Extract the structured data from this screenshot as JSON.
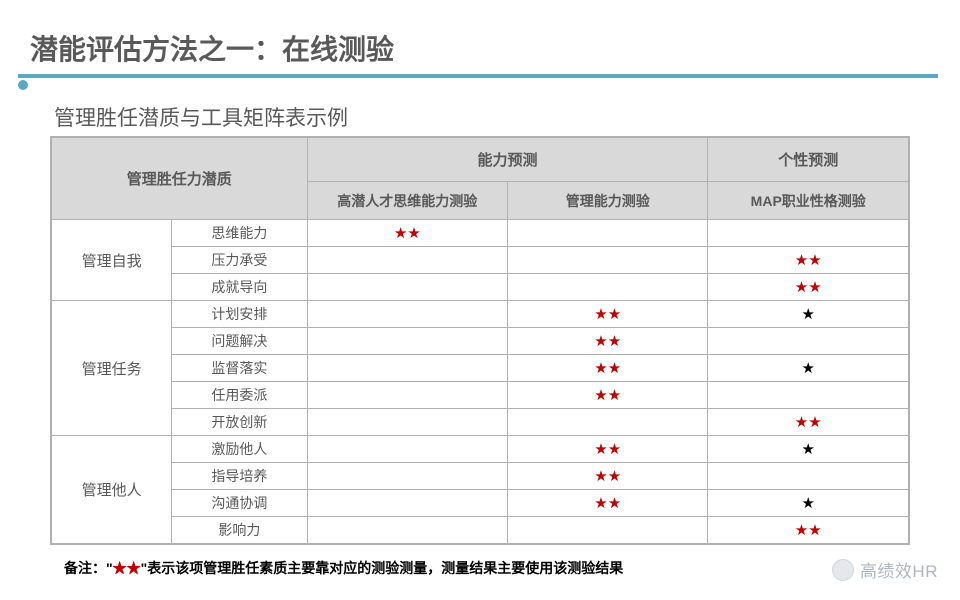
{
  "title": "潜能评估方法之一：在线测验",
  "subtitle": "管理胜任潜质与工具矩阵表示例",
  "colors": {
    "accent": "#5aa8c8",
    "header_bg": "#d9d9d9",
    "border": "#b0b0b0",
    "text": "#595959",
    "star_primary": "#c00000",
    "star_secondary": "#000000",
    "brand": "#aeb6bd"
  },
  "table": {
    "header_row1": {
      "col1": "管理胜任力潜质",
      "col2": "能力预测",
      "col3": "个性预测"
    },
    "header_row2": {
      "c1": "高潜人才思维能力测验",
      "c2": "管理能力测验",
      "c3": "MAP职业性格测验"
    },
    "groups": [
      {
        "category": "管理自我",
        "items": [
          {
            "name": "思维能力",
            "marks": [
              "rr",
              "",
              ""
            ]
          },
          {
            "name": "压力承受",
            "marks": [
              "",
              "",
              "rr"
            ]
          },
          {
            "name": "成就导向",
            "marks": [
              "",
              "",
              "rr"
            ]
          }
        ]
      },
      {
        "category": "管理任务",
        "items": [
          {
            "name": "计划安排",
            "marks": [
              "",
              "rr",
              "b"
            ]
          },
          {
            "name": "问题解决",
            "marks": [
              "",
              "rr",
              ""
            ]
          },
          {
            "name": "监督落实",
            "marks": [
              "",
              "rr",
              "b"
            ]
          },
          {
            "name": "任用委派",
            "marks": [
              "",
              "rr",
              ""
            ]
          },
          {
            "name": "开放创新",
            "marks": [
              "",
              "",
              "rr"
            ]
          }
        ]
      },
      {
        "category": "管理他人",
        "items": [
          {
            "name": "激励他人",
            "marks": [
              "",
              "rr",
              "b"
            ]
          },
          {
            "name": "指导培养",
            "marks": [
              "",
              "rr",
              ""
            ]
          },
          {
            "name": "沟通协调",
            "marks": [
              "",
              "rr",
              "b"
            ]
          },
          {
            "name": "影响力",
            "marks": [
              "",
              "",
              "rr"
            ]
          }
        ]
      }
    ]
  },
  "footnote": {
    "prefix": "备注：\"",
    "stars": "★★",
    "suffix": "\"表示该项管理胜任素质主要靠对应的测验测量，测量结果主要使用该测验结果"
  },
  "brand": "高绩效HR",
  "star_glyph": "★"
}
